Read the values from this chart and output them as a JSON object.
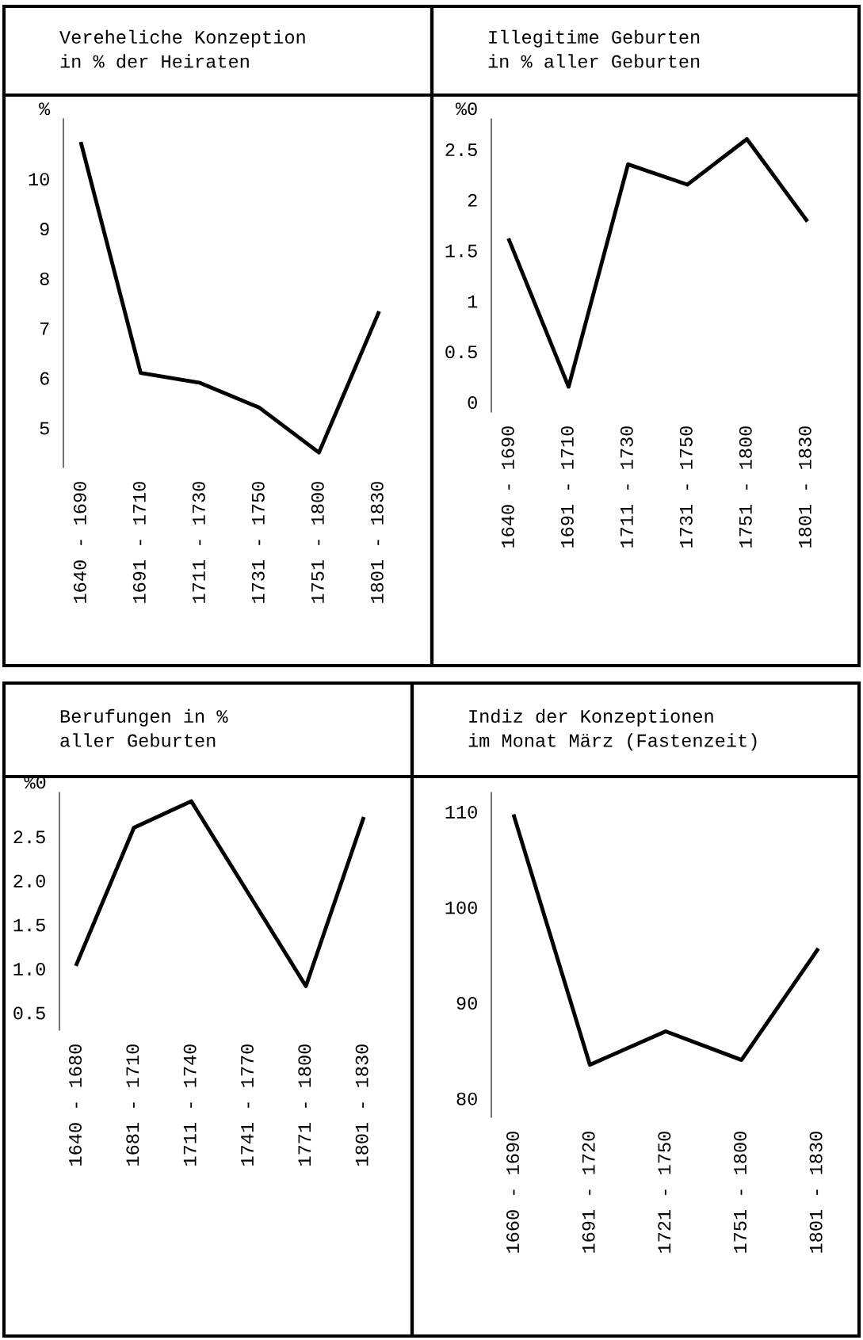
{
  "chart_data": [
    {
      "type": "line",
      "title": "Vereheliche Konzeption\nin % der Heiraten",
      "ylabel": "%",
      "categories": [
        "1640 - 1690",
        "1691 - 1710",
        "1711 - 1730",
        "1731 - 1750",
        "1751 - 1800",
        "1801 - 1830"
      ],
      "series": [
        {
          "color": "#000000",
          "values": [
            10.7,
            6.1,
            5.9,
            5.4,
            4.5,
            7.3
          ]
        }
      ],
      "ylim": [
        4.2,
        11.2
      ],
      "yticks": [
        5,
        6,
        7,
        8,
        9,
        10
      ],
      "grid": false,
      "marker": "none",
      "line_style": "solid"
    },
    {
      "type": "line",
      "title": "Illegitime Geburten\nin % aller Geburten",
      "ylabel": "%0",
      "categories": [
        "1640 - 1690",
        "1691 - 1710",
        "1711 - 1730",
        "1731 - 1750",
        "1751 - 1800",
        "1801 - 1830"
      ],
      "series": [
        {
          "color": "#000000",
          "values": [
            1.6,
            0.15,
            2.35,
            2.15,
            2.6,
            1.8
          ]
        }
      ],
      "ylim": [
        -0.1,
        2.8
      ],
      "yticks": [
        0,
        0.5,
        1,
        1.5,
        2,
        2.5
      ],
      "grid": false,
      "marker": "none",
      "line_style": "solid"
    },
    {
      "type": "line",
      "title": "Berufungen in %\naller Geburten",
      "ylabel": "%0",
      "categories": [
        "1640 - 1680",
        "1681 - 1710",
        "1711 - 1740",
        "1741 - 1770",
        "1771 - 1800",
        "1801 - 1830"
      ],
      "series": [
        {
          "color": "#000000",
          "values": [
            1.05,
            2.6,
            2.9,
            1.85,
            0.8,
            2.7
          ]
        }
      ],
      "ylim": [
        0.3,
        3.0
      ],
      "yticks": [
        {
          "value": 0.5,
          "label": "0.5"
        },
        {
          "value": 1.0,
          "label": "1.0"
        },
        {
          "value": 1.5,
          "label": "1.5"
        },
        {
          "value": 2.0,
          "label": "2.0"
        },
        {
          "value": 2.5,
          "label": "2.5"
        }
      ],
      "grid": false,
      "marker": "none",
      "line_style": "solid"
    },
    {
      "type": "line",
      "title": "Indiz der Konzeptionen\nim Monat März (Fastenzeit)",
      "categories": [
        "1660 - 1690",
        "1691 - 1720",
        "1721 - 1750",
        "1751 - 1800",
        "1801 - 1830"
      ],
      "series": [
        {
          "color": "#000000",
          "values": [
            109.5,
            83.5,
            87,
            84,
            95.5
          ]
        }
      ],
      "ylim": [
        78,
        112
      ],
      "yticks": [
        80,
        90,
        100,
        110
      ],
      "grid": false,
      "marker": "none",
      "line_style": "solid"
    }
  ]
}
